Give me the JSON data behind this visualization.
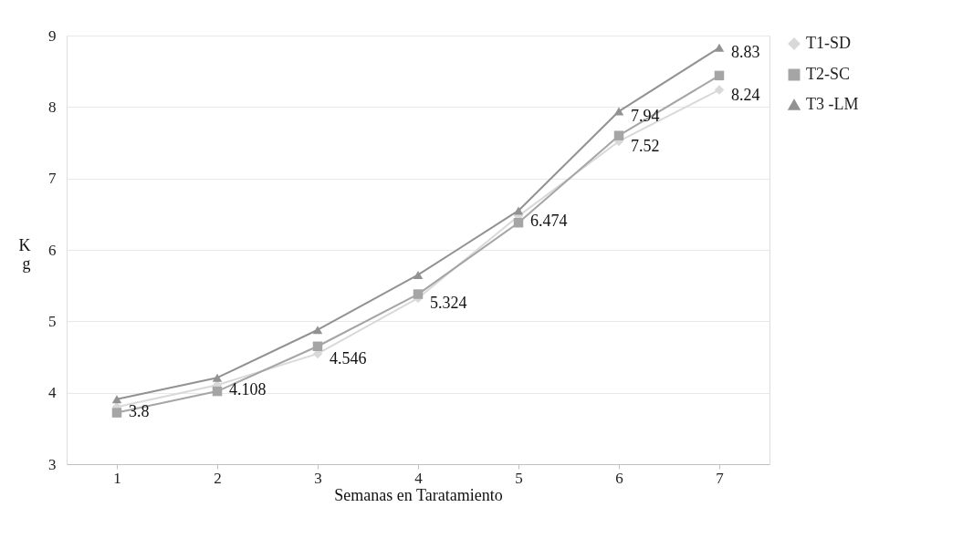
{
  "chart_data": {
    "type": "line",
    "xlabel": "Semanas en Taratamiento",
    "ylabel": "Kg",
    "categories": [
      "1",
      "2",
      "3",
      "4",
      "5",
      "6",
      "7"
    ],
    "ylim": [
      3,
      9
    ],
    "yticks": [
      3,
      4,
      5,
      6,
      7,
      8,
      9
    ],
    "grid": "y",
    "legend": "right",
    "line_style": "solid",
    "series": [
      {
        "name": "T1-SD",
        "color": "#d9d9d9",
        "marker": "diamond",
        "values": [
          3.8,
          4.108,
          4.546,
          5.324,
          6.474,
          7.52,
          8.24
        ],
        "value_labels": [
          "3.8",
          "4.108",
          "4.546",
          "5.324",
          "6.474",
          "7.52",
          "8.24"
        ]
      },
      {
        "name": "T2-SC",
        "color": "#a5a5a5",
        "marker": "square",
        "values": [
          3.72,
          4.02,
          4.65,
          5.38,
          6.38,
          7.6,
          8.44
        ]
      },
      {
        "name": "T3 -LM",
        "color": "#929292",
        "marker": "triangle",
        "values": [
          3.91,
          4.21,
          4.88,
          5.65,
          6.55,
          7.94,
          8.83
        ],
        "value_labels": [
          null,
          null,
          null,
          null,
          null,
          "7.94",
          "8.83"
        ]
      }
    ]
  }
}
